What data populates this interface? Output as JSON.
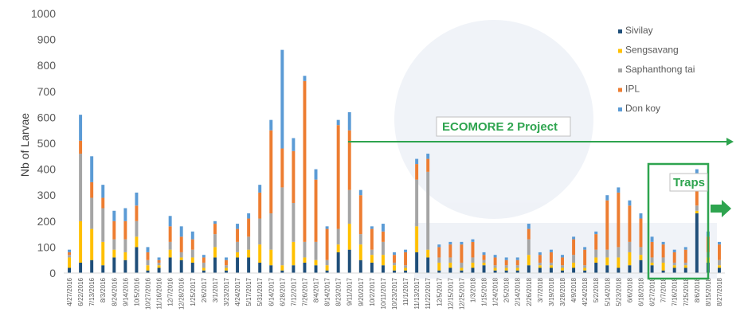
{
  "chart_data": {
    "type": "bar",
    "stacked": true,
    "ylabel": "Nb of Larvae",
    "ylim": [
      0,
      1000
    ],
    "yticks": [
      0,
      100,
      200,
      300,
      400,
      500,
      600,
      700,
      800,
      900,
      1000
    ],
    "grid": false,
    "legend_position": "right",
    "x_tick_labels": [
      "4/27/2016",
      "6/22/2016",
      "7/13/2016",
      "8/3/2016",
      "8/24/2016",
      "9/14/2016",
      "10/5/2016",
      "10/27/2016",
      "11/16/2016",
      "12/7/2016",
      "12/28/2016",
      "1/25/2017",
      "2/6/2017",
      "3/1/2017",
      "3/23/2017",
      "4/24/2017",
      "5/17/2017",
      "5/31/2017",
      "6/14/2017",
      "6/28/2017",
      "7/12/2017",
      "7/26/2017",
      "8/4/2017",
      "8/14/2017",
      "8/23/2017",
      "9/11/2017",
      "9/20/2017",
      "10/2/2017",
      "10/11/2017",
      "10/23/2017",
      "11/1/2017",
      "11/13/2017",
      "11/22/2017",
      "12/5/2017",
      "12/15/2017",
      "12/25/2017",
      "1/3/2018",
      "1/15/2018",
      "1/24/2018",
      "2/5/2018",
      "2/14/2018",
      "2/26/2018",
      "3/7/2018",
      "3/19/2018",
      "3/28/2018",
      "4/9/2018",
      "4/24/2018",
      "5/2/2018",
      "5/14/2018",
      "5/23/2018",
      "6/6/2018",
      "6/18/2018",
      "6/27/2018",
      "7/7/2018",
      "7/16/2018",
      "7/25/2018",
      "8/6/2018",
      "8/15/2018",
      "8/27/2018"
    ],
    "series_names": [
      "Sivilay",
      "Sengsavang",
      "Saphanthong tai",
      "IPL",
      "Don koy"
    ],
    "series_colors": [
      "#1f4e79",
      "#ffc000",
      "#a5a5a5",
      "#ed7d31",
      "#5b9bd5"
    ],
    "series": [
      {
        "name": "Sivilay",
        "values": [
          20,
          40,
          50,
          30,
          60,
          50,
          100,
          10,
          20,
          60,
          50,
          40,
          10,
          60,
          10,
          60,
          60,
          40,
          30,
          10,
          30,
          40,
          30,
          10,
          80,
          90,
          50,
          40,
          30,
          10,
          10,
          80,
          60,
          10,
          20,
          10,
          20,
          30,
          10,
          10,
          10,
          30,
          20,
          20,
          10,
          20,
          10,
          40,
          30,
          20,
          30,
          50,
          30,
          10,
          20,
          20,
          230,
          40,
          20
        ]
      },
      {
        "name": "Sengsavang",
        "values": [
          40,
          160,
          120,
          90,
          30,
          30,
          40,
          20,
          10,
          30,
          10,
          20,
          10,
          40,
          10,
          20,
          30,
          70,
          60,
          20,
          90,
          20,
          20,
          20,
          30,
          100,
          60,
          30,
          40,
          20,
          10,
          100,
          30,
          30,
          20,
          10,
          20,
          10,
          10,
          10,
          10,
          40,
          10,
          10,
          10,
          20,
          10,
          20,
          30,
          40,
          50,
          20,
          10,
          30,
          10,
          10,
          10,
          20,
          10
        ]
      },
      {
        "name": "Saphanthong tai",
        "values": [
          10,
          260,
          120,
          130,
          40,
          50,
          60,
          20,
          10,
          30,
          20,
          30,
          20,
          50,
          10,
          40,
          50,
          100,
          140,
          300,
          150,
          60,
          70,
          20,
          60,
          130,
          40,
          20,
          50,
          10,
          10,
          180,
          300,
          20,
          20,
          20,
          20,
          10,
          10,
          10,
          10,
          60,
          10,
          10,
          10,
          30,
          10,
          30,
          30,
          40,
          40,
          30,
          20,
          20,
          10,
          10,
          20,
          20,
          20
        ]
      },
      {
        "name": "IPL",
        "values": [
          10,
          50,
          60,
          40,
          70,
          70,
          60,
          30,
          10,
          60,
          60,
          40,
          20,
          40,
          20,
          50,
          70,
          100,
          320,
          150,
          200,
          620,
          240,
          120,
          400,
          230,
          150,
          80,
          40,
          30,
          50,
          60,
          50,
          40,
          50,
          70,
          60,
          20,
          30,
          20,
          20,
          40,
          30,
          40,
          30,
          60,
          60,
          60,
          190,
          210,
          140,
          110,
          60,
          50,
          40,
          50,
          100,
          60,
          60
        ]
      },
      {
        "name": "Don koy",
        "values": [
          10,
          100,
          100,
          50,
          40,
          50,
          50,
          20,
          10,
          40,
          40,
          30,
          10,
          10,
          10,
          20,
          20,
          30,
          40,
          380,
          50,
          20,
          40,
          10,
          20,
          70,
          20,
          10,
          30,
          10,
          10,
          20,
          20,
          10,
          10,
          10,
          10,
          10,
          10,
          10,
          10,
          20,
          10,
          10,
          10,
          10,
          10,
          10,
          20,
          20,
          20,
          20,
          20,
          10,
          10,
          10,
          40,
          20,
          10
        ]
      }
    ],
    "annotations": [
      {
        "text": "ECOMORE 2 Project"
      },
      {
        "text": "Traps"
      }
    ]
  }
}
